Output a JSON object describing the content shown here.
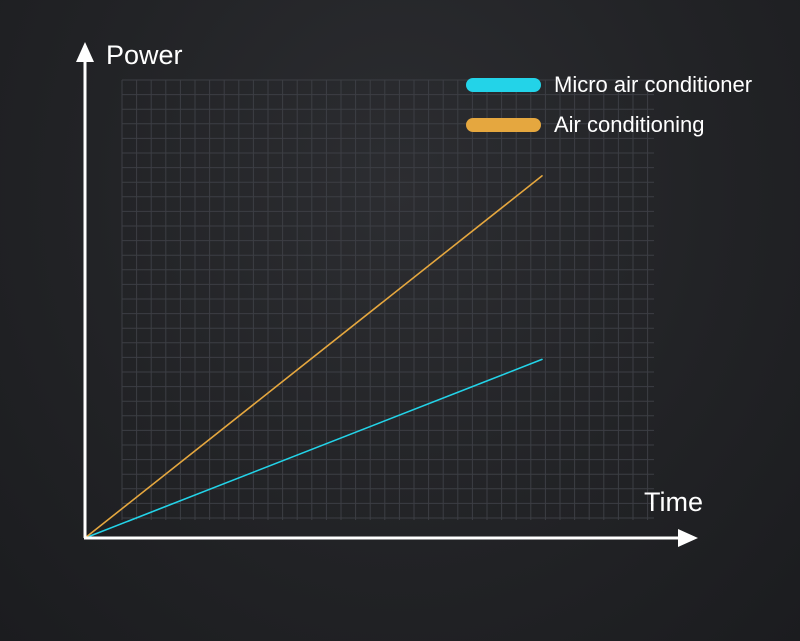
{
  "chart_data": {
    "type": "line",
    "xlabel": "Time",
    "ylabel": "Power",
    "grid": true,
    "legend_position": "top-right",
    "axis_ticks_shown": false,
    "xlim": [
      0,
      10
    ],
    "ylim": [
      0,
      10
    ],
    "series": [
      {
        "name": "Micro air conditioner",
        "color": "#23d3e8",
        "x": [
          0,
          10
        ],
        "y": [
          0,
          3.6
        ]
      },
      {
        "name": "Air conditioning",
        "color": "#e5a73f",
        "x": [
          0,
          10
        ],
        "y": [
          0,
          7.3
        ]
      }
    ]
  }
}
